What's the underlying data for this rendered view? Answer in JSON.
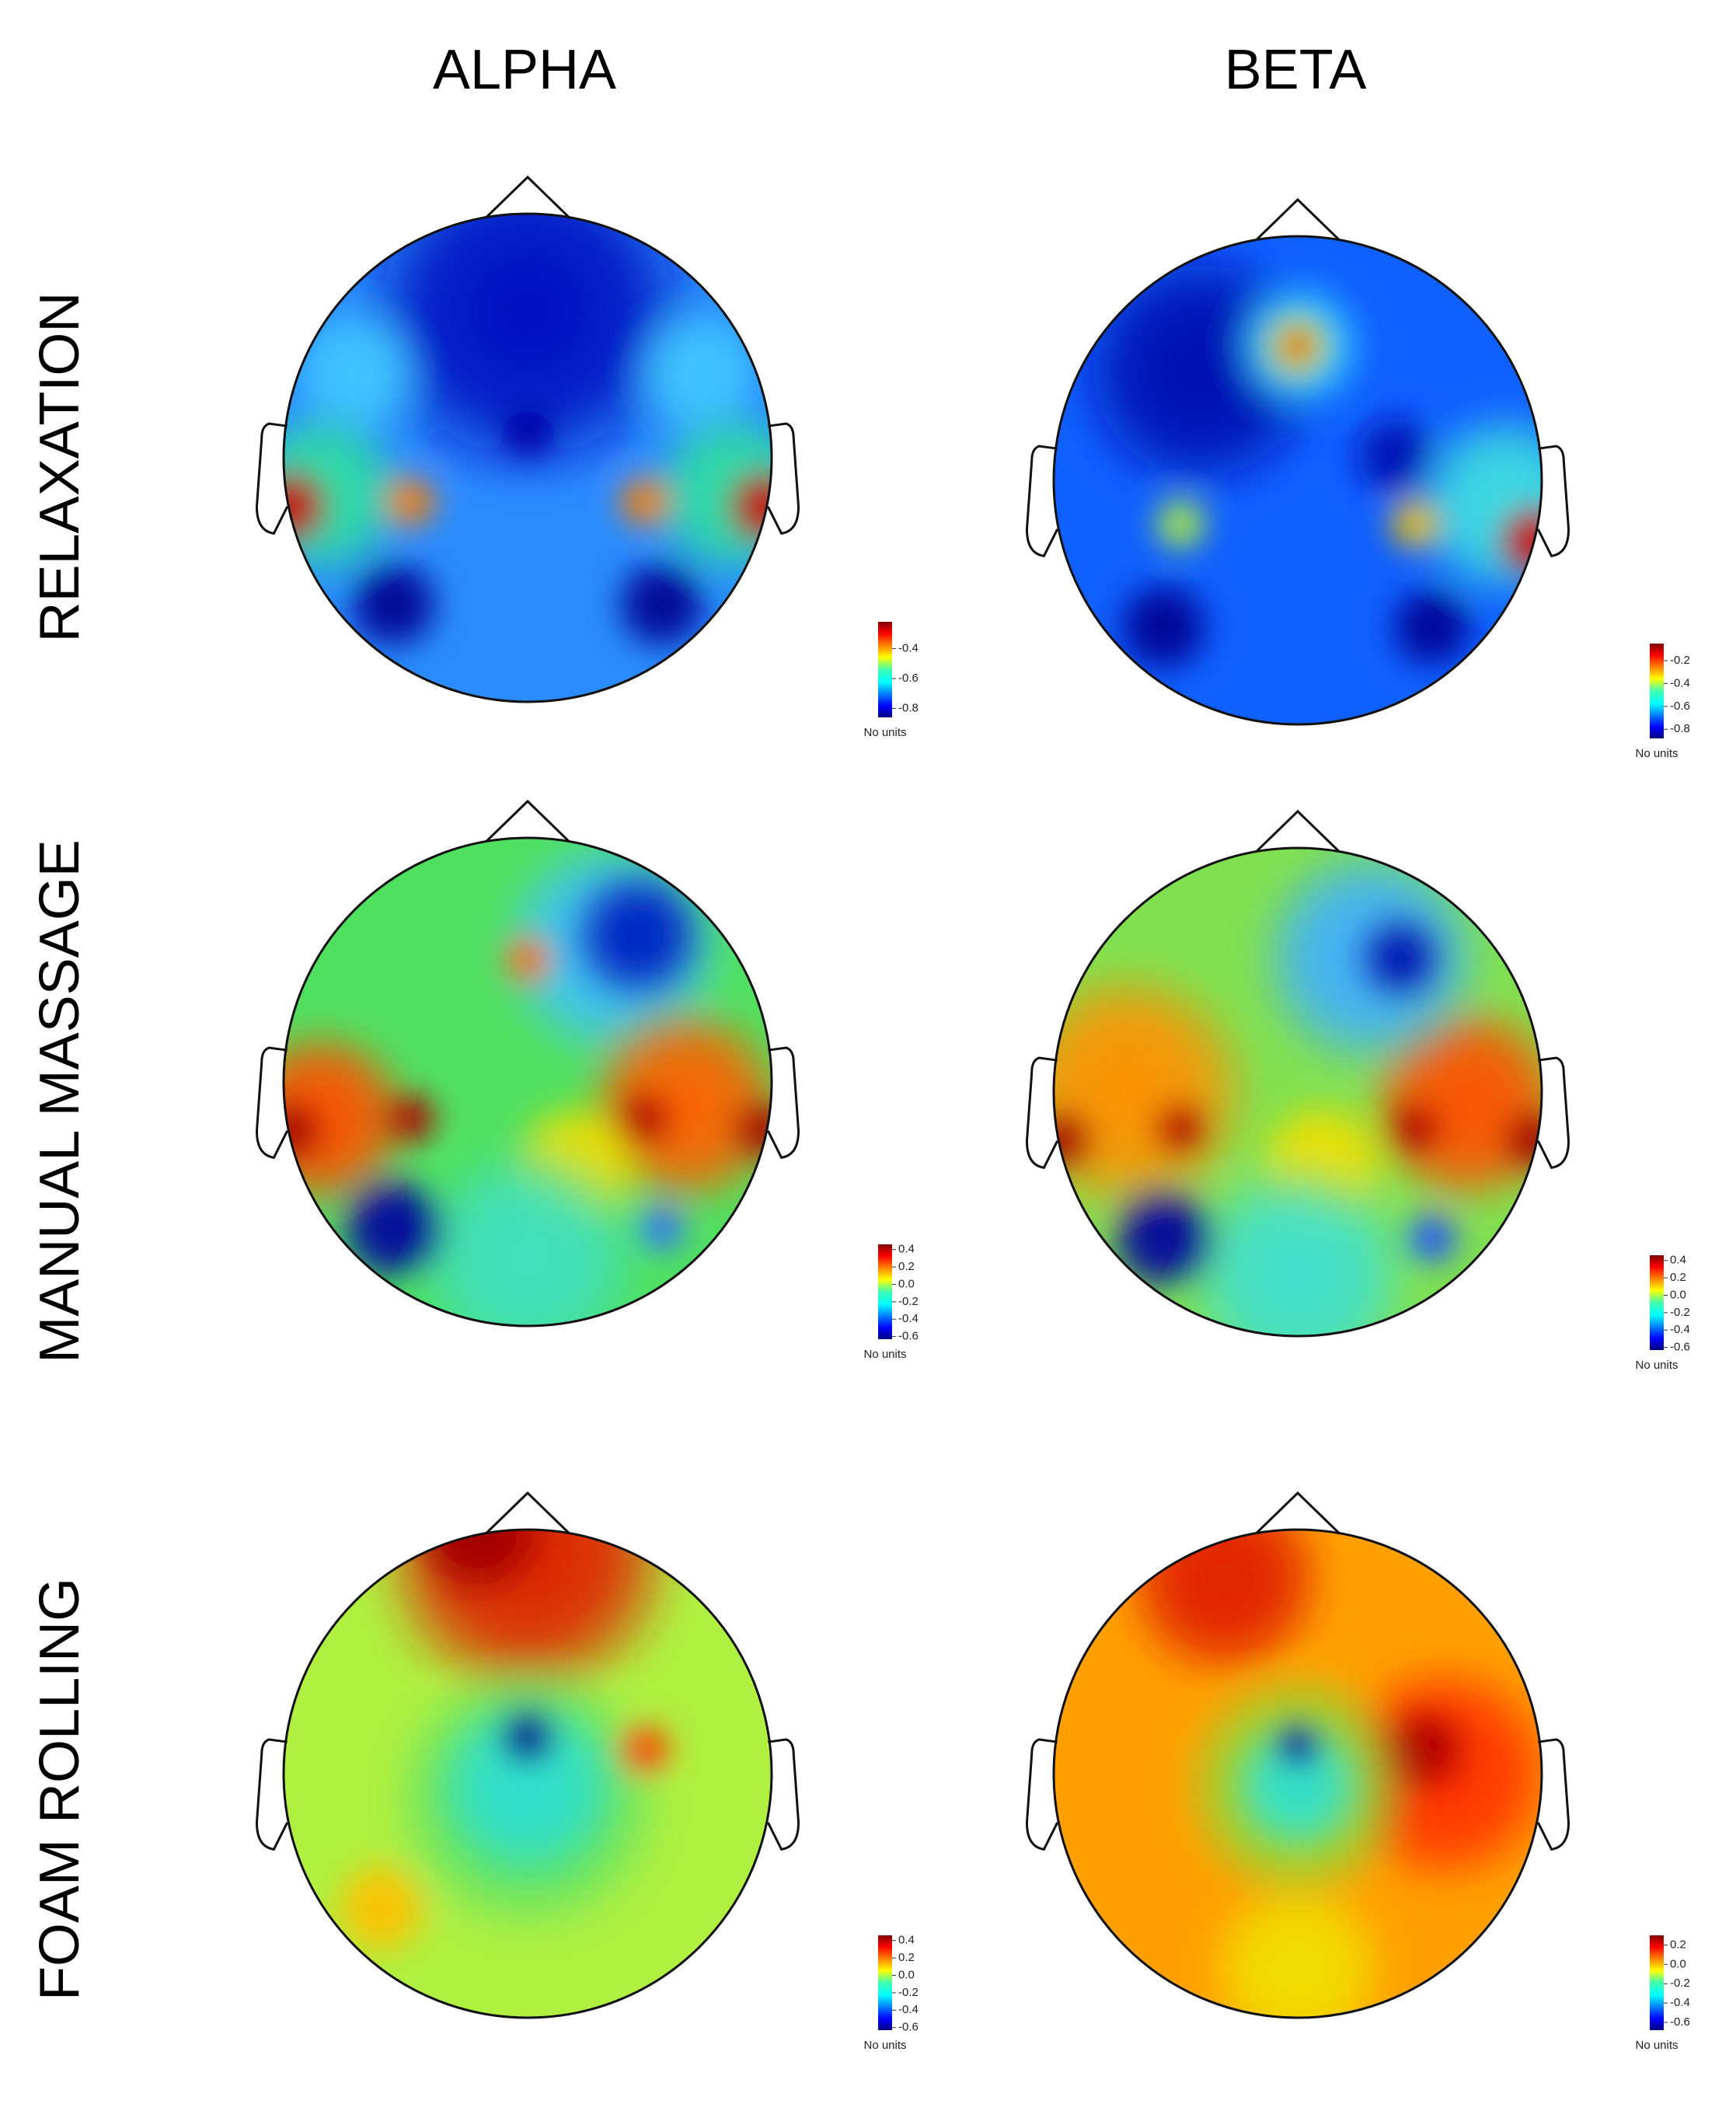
{
  "column_titles": [
    "ALPHA",
    "BETA"
  ],
  "row_labels": [
    "RELAXATION",
    "MANUAL MASSAGE",
    "FOAM ROLLING"
  ],
  "panels": [
    {
      "colorbar": {
        "clim": [
          -0.86,
          -0.22
        ],
        "ticks": [
          -0.4,
          -0.6,
          -0.8
        ],
        "unit_label": "No units"
      }
    },
    {
      "colorbar": {
        "clim": [
          -0.88,
          -0.05
        ],
        "ticks": [
          -0.2,
          -0.4,
          -0.6,
          -0.8
        ],
        "unit_label": "No units"
      }
    },
    {
      "colorbar": {
        "clim": [
          -0.63,
          0.46
        ],
        "ticks": [
          0.4,
          0.2,
          {
            "value": 0,
            "label": "0.0"
          },
          -0.2,
          -0.4,
          -0.6
        ],
        "unit_label": "No units"
      }
    },
    {
      "colorbar": {
        "clim": [
          -0.63,
          0.46
        ],
        "ticks": [
          0.4,
          0.2,
          {
            "value": 0,
            "label": "0.0"
          },
          -0.2,
          -0.4,
          -0.6
        ],
        "unit_label": "No units"
      }
    },
    {
      "colorbar": {
        "clim": [
          -0.63,
          0.46
        ],
        "ticks": [
          0.4,
          0.2,
          {
            "value": 0,
            "label": "0.0"
          },
          -0.2,
          -0.4,
          -0.6
        ],
        "unit_label": "No units"
      }
    },
    {
      "colorbar": {
        "clim": [
          -0.68,
          0.3
        ],
        "ticks": [
          0.2,
          {
            "value": 0,
            "label": "0.0"
          },
          -0.2,
          -0.4,
          -0.6
        ],
        "unit_label": "No units"
      }
    }
  ]
}
